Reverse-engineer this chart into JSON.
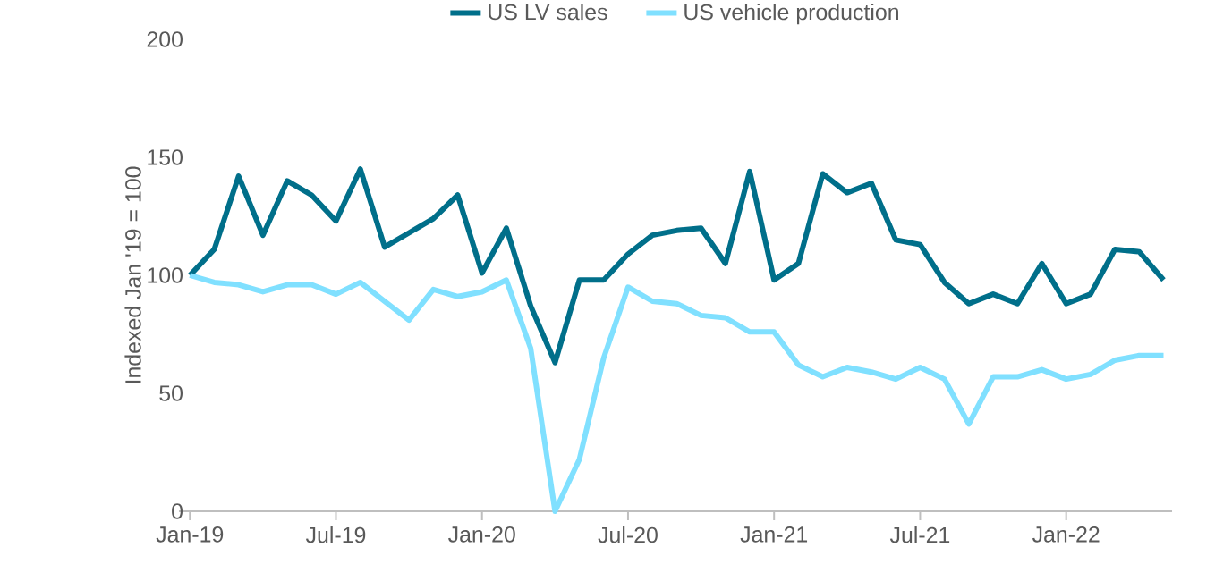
{
  "chart_data": {
    "type": "line",
    "ylabel": "Indexed Jan '19 = 100",
    "categories": [
      "Jan-19",
      null,
      null,
      null,
      null,
      null,
      "Jul-19",
      null,
      null,
      null,
      null,
      null,
      "Jan-20",
      null,
      null,
      null,
      null,
      null,
      "Jul-20",
      null,
      null,
      null,
      null,
      null,
      "Jan-21",
      null,
      null,
      null,
      null,
      null,
      "Jul-21",
      null,
      null,
      null,
      null,
      null,
      "Jan-22",
      null,
      null,
      null,
      null
    ],
    "series": [
      {
        "name": "US LV sales",
        "color": "#006f8a",
        "values": [
          100,
          111,
          142,
          117,
          140,
          134,
          123,
          145,
          112,
          118,
          124,
          134,
          101,
          120,
          87,
          63,
          98,
          98,
          109,
          117,
          119,
          120,
          105,
          144,
          98,
          105,
          143,
          135,
          139,
          115,
          113,
          97,
          88,
          92,
          88,
          105,
          88,
          92,
          111,
          110,
          98
        ]
      },
      {
        "name": "US vehicle production",
        "color": "#80e0ff",
        "values": [
          100,
          97,
          96,
          93,
          96,
          96,
          92,
          97,
          89,
          81,
          94,
          91,
          93,
          98,
          69,
          0,
          22,
          65,
          95,
          89,
          88,
          83,
          82,
          76,
          76,
          62,
          57,
          61,
          59,
          56,
          61,
          56,
          37,
          57,
          57,
          60,
          56,
          58,
          64,
          66,
          66
        ]
      }
    ],
    "ylim": [
      0,
      200
    ],
    "yticks": [
      0,
      50,
      100,
      150,
      200
    ],
    "legend": "top",
    "grid": false,
    "marker": "none",
    "line_style": "solid"
  }
}
